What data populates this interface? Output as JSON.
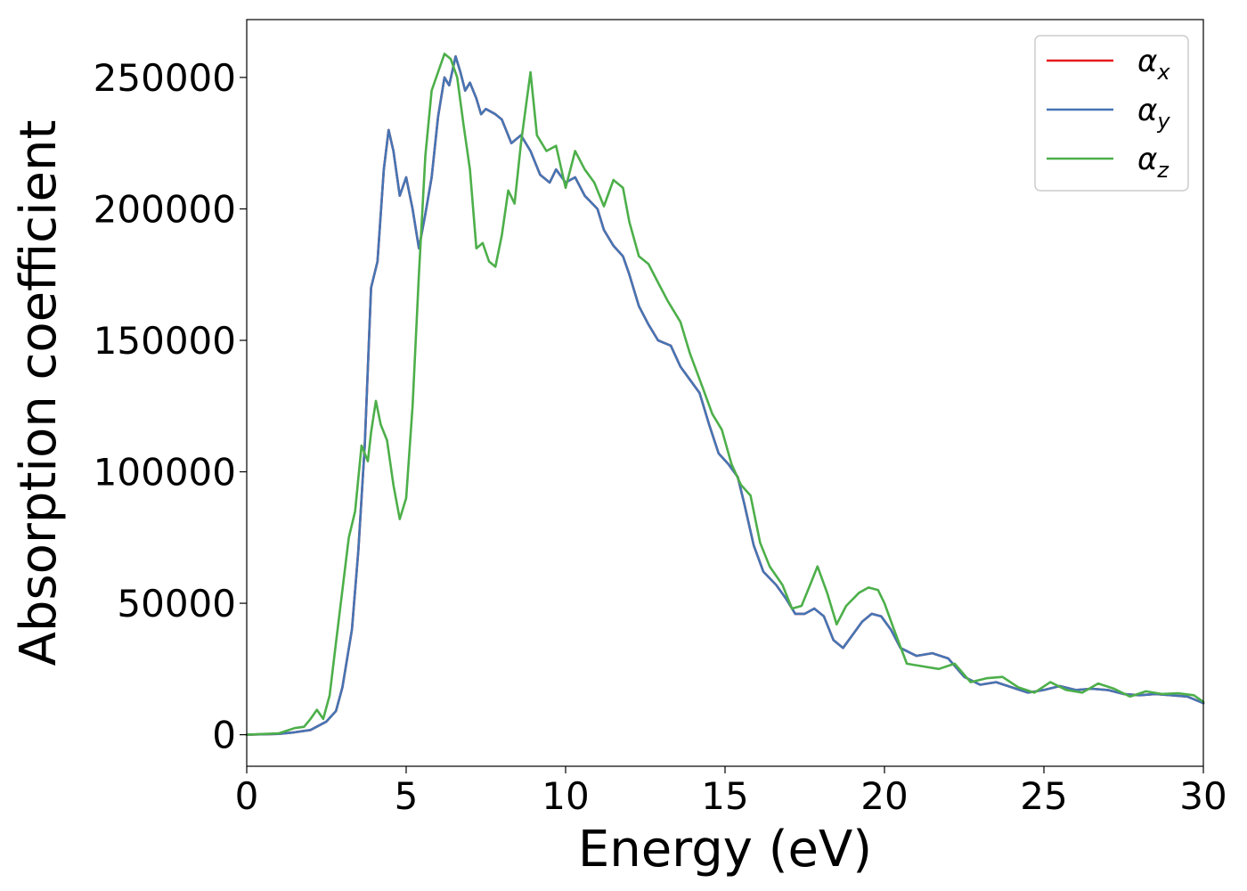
{
  "chart_data": {
    "type": "line",
    "xlabel": "Energy (eV)",
    "ylabel": "Absorption coefficient",
    "xlim": [
      0,
      30
    ],
    "ylim": [
      -12000,
      272000
    ],
    "xticks": [
      0,
      5,
      10,
      15,
      20,
      25,
      30
    ],
    "yticks": [
      0,
      50000,
      100000,
      150000,
      200000,
      250000
    ],
    "grid": false,
    "legend_position": "top-right",
    "series": [
      {
        "name": "αx",
        "legend_main": "α",
        "legend_sub": "x",
        "color": "#e41a1c",
        "points": [
          [
            0,
            0
          ],
          [
            1,
            300
          ],
          [
            1.5,
            900
          ],
          [
            2,
            1800
          ],
          [
            2.5,
            5000
          ],
          [
            2.8,
            9000
          ],
          [
            3,
            18000
          ],
          [
            3.3,
            40000
          ],
          [
            3.5,
            70000
          ],
          [
            3.7,
            110000
          ],
          [
            3.9,
            170000
          ],
          [
            4.1,
            180000
          ],
          [
            4.3,
            215000
          ],
          [
            4.45,
            230000
          ],
          [
            4.6,
            222000
          ],
          [
            4.8,
            205000
          ],
          [
            5.0,
            212000
          ],
          [
            5.2,
            200000
          ],
          [
            5.4,
            185000
          ],
          [
            5.6,
            198000
          ],
          [
            5.8,
            212000
          ],
          [
            6.0,
            235000
          ],
          [
            6.2,
            250000
          ],
          [
            6.35,
            247000
          ],
          [
            6.55,
            258000
          ],
          [
            6.7,
            252000
          ],
          [
            6.85,
            245000
          ],
          [
            7.0,
            248000
          ],
          [
            7.2,
            242000
          ],
          [
            7.35,
            236000
          ],
          [
            7.5,
            238000
          ],
          [
            7.8,
            236000
          ],
          [
            8.0,
            234000
          ],
          [
            8.3,
            225000
          ],
          [
            8.6,
            228000
          ],
          [
            8.9,
            222000
          ],
          [
            9.2,
            213000
          ],
          [
            9.5,
            210000
          ],
          [
            9.7,
            215000
          ],
          [
            10.0,
            210000
          ],
          [
            10.3,
            212000
          ],
          [
            10.6,
            205000
          ],
          [
            11.0,
            200000
          ],
          [
            11.2,
            192000
          ],
          [
            11.5,
            186000
          ],
          [
            11.8,
            182000
          ],
          [
            12.0,
            175000
          ],
          [
            12.3,
            163000
          ],
          [
            12.6,
            156000
          ],
          [
            12.9,
            150000
          ],
          [
            13.3,
            148000
          ],
          [
            13.6,
            140000
          ],
          [
            13.9,
            135000
          ],
          [
            14.2,
            130000
          ],
          [
            14.5,
            118000
          ],
          [
            14.8,
            107000
          ],
          [
            15.1,
            103000
          ],
          [
            15.4,
            98000
          ],
          [
            15.6,
            88000
          ],
          [
            15.9,
            72000
          ],
          [
            16.2,
            62000
          ],
          [
            16.6,
            57000
          ],
          [
            16.9,
            52000
          ],
          [
            17.2,
            46000
          ],
          [
            17.5,
            46000
          ],
          [
            17.8,
            48000
          ],
          [
            18.1,
            45000
          ],
          [
            18.4,
            36000
          ],
          [
            18.7,
            33000
          ],
          [
            19.0,
            38000
          ],
          [
            19.3,
            43000
          ],
          [
            19.6,
            46000
          ],
          [
            19.9,
            45000
          ],
          [
            20.2,
            40000
          ],
          [
            20.5,
            33000
          ],
          [
            21.0,
            30000
          ],
          [
            21.5,
            31000
          ],
          [
            22.0,
            29000
          ],
          [
            22.5,
            22000
          ],
          [
            23.0,
            19000
          ],
          [
            23.5,
            20000
          ],
          [
            24.0,
            18000
          ],
          [
            24.5,
            16000
          ],
          [
            25.0,
            17000
          ],
          [
            25.5,
            18500
          ],
          [
            26.0,
            17000
          ],
          [
            26.5,
            17500
          ],
          [
            27.0,
            17000
          ],
          [
            27.5,
            15500
          ],
          [
            28.0,
            15000
          ],
          [
            28.5,
            15500
          ],
          [
            29.0,
            15000
          ],
          [
            29.5,
            14500
          ],
          [
            30.0,
            12000
          ]
        ]
      },
      {
        "name": "αy",
        "legend_main": "α",
        "legend_sub": "y",
        "color": "#4575b4",
        "points": [
          [
            0,
            0
          ],
          [
            1,
            300
          ],
          [
            1.5,
            900
          ],
          [
            2,
            1800
          ],
          [
            2.5,
            5000
          ],
          [
            2.8,
            9000
          ],
          [
            3,
            18000
          ],
          [
            3.3,
            40000
          ],
          [
            3.5,
            70000
          ],
          [
            3.7,
            110000
          ],
          [
            3.9,
            170000
          ],
          [
            4.1,
            180000
          ],
          [
            4.3,
            215000
          ],
          [
            4.45,
            230000
          ],
          [
            4.6,
            222000
          ],
          [
            4.8,
            205000
          ],
          [
            5.0,
            212000
          ],
          [
            5.2,
            200000
          ],
          [
            5.4,
            185000
          ],
          [
            5.6,
            198000
          ],
          [
            5.8,
            212000
          ],
          [
            6.0,
            235000
          ],
          [
            6.2,
            250000
          ],
          [
            6.35,
            247000
          ],
          [
            6.55,
            258000
          ],
          [
            6.7,
            252000
          ],
          [
            6.85,
            245000
          ],
          [
            7.0,
            248000
          ],
          [
            7.2,
            242000
          ],
          [
            7.35,
            236000
          ],
          [
            7.5,
            238000
          ],
          [
            7.8,
            236000
          ],
          [
            8.0,
            234000
          ],
          [
            8.3,
            225000
          ],
          [
            8.6,
            228000
          ],
          [
            8.9,
            222000
          ],
          [
            9.2,
            213000
          ],
          [
            9.5,
            210000
          ],
          [
            9.7,
            215000
          ],
          [
            10.0,
            210000
          ],
          [
            10.3,
            212000
          ],
          [
            10.6,
            205000
          ],
          [
            11.0,
            200000
          ],
          [
            11.2,
            192000
          ],
          [
            11.5,
            186000
          ],
          [
            11.8,
            182000
          ],
          [
            12.0,
            175000
          ],
          [
            12.3,
            163000
          ],
          [
            12.6,
            156000
          ],
          [
            12.9,
            150000
          ],
          [
            13.3,
            148000
          ],
          [
            13.6,
            140000
          ],
          [
            13.9,
            135000
          ],
          [
            14.2,
            130000
          ],
          [
            14.5,
            118000
          ],
          [
            14.8,
            107000
          ],
          [
            15.1,
            103000
          ],
          [
            15.4,
            98000
          ],
          [
            15.6,
            88000
          ],
          [
            15.9,
            72000
          ],
          [
            16.2,
            62000
          ],
          [
            16.6,
            57000
          ],
          [
            16.9,
            52000
          ],
          [
            17.2,
            46000
          ],
          [
            17.5,
            46000
          ],
          [
            17.8,
            48000
          ],
          [
            18.1,
            45000
          ],
          [
            18.4,
            36000
          ],
          [
            18.7,
            33000
          ],
          [
            19.0,
            38000
          ],
          [
            19.3,
            43000
          ],
          [
            19.6,
            46000
          ],
          [
            19.9,
            45000
          ],
          [
            20.2,
            40000
          ],
          [
            20.5,
            33000
          ],
          [
            21.0,
            30000
          ],
          [
            21.5,
            31000
          ],
          [
            22.0,
            29000
          ],
          [
            22.5,
            22000
          ],
          [
            23.0,
            19000
          ],
          [
            23.5,
            20000
          ],
          [
            24.0,
            18000
          ],
          [
            24.5,
            16000
          ],
          [
            25.0,
            17000
          ],
          [
            25.5,
            18500
          ],
          [
            26.0,
            17000
          ],
          [
            26.5,
            17500
          ],
          [
            27.0,
            17000
          ],
          [
            27.5,
            15500
          ],
          [
            28.0,
            15000
          ],
          [
            28.5,
            15500
          ],
          [
            29.0,
            15000
          ],
          [
            29.5,
            14500
          ],
          [
            30.0,
            12000
          ]
        ]
      },
      {
        "name": "αz",
        "legend_main": "α",
        "legend_sub": "z",
        "color": "#4daf4a",
        "points": [
          [
            0,
            0
          ],
          [
            1,
            500
          ],
          [
            1.5,
            2500
          ],
          [
            1.8,
            3000
          ],
          [
            2.0,
            6000
          ],
          [
            2.2,
            9500
          ],
          [
            2.4,
            6000
          ],
          [
            2.6,
            15000
          ],
          [
            2.8,
            35000
          ],
          [
            3.0,
            55000
          ],
          [
            3.2,
            75000
          ],
          [
            3.4,
            85000
          ],
          [
            3.6,
            110000
          ],
          [
            3.8,
            104000
          ],
          [
            3.9,
            115000
          ],
          [
            4.05,
            127000
          ],
          [
            4.2,
            118000
          ],
          [
            4.4,
            112000
          ],
          [
            4.6,
            95000
          ],
          [
            4.8,
            82000
          ],
          [
            5.0,
            90000
          ],
          [
            5.2,
            125000
          ],
          [
            5.4,
            175000
          ],
          [
            5.6,
            220000
          ],
          [
            5.8,
            245000
          ],
          [
            6.0,
            252000
          ],
          [
            6.2,
            259000
          ],
          [
            6.4,
            257000
          ],
          [
            6.6,
            250000
          ],
          [
            6.8,
            232000
          ],
          [
            7.0,
            215000
          ],
          [
            7.2,
            185000
          ],
          [
            7.4,
            187000
          ],
          [
            7.6,
            180000
          ],
          [
            7.8,
            178000
          ],
          [
            8.0,
            190000
          ],
          [
            8.2,
            207000
          ],
          [
            8.4,
            202000
          ],
          [
            8.6,
            225000
          ],
          [
            8.9,
            252000
          ],
          [
            9.1,
            228000
          ],
          [
            9.4,
            222000
          ],
          [
            9.7,
            224000
          ],
          [
            10.0,
            208000
          ],
          [
            10.3,
            222000
          ],
          [
            10.6,
            215000
          ],
          [
            10.9,
            210000
          ],
          [
            11.2,
            201000
          ],
          [
            11.5,
            211000
          ],
          [
            11.8,
            208000
          ],
          [
            12.0,
            195000
          ],
          [
            12.3,
            182000
          ],
          [
            12.6,
            179000
          ],
          [
            12.9,
            172000
          ],
          [
            13.2,
            165000
          ],
          [
            13.6,
            157000
          ],
          [
            13.9,
            145000
          ],
          [
            14.3,
            132000
          ],
          [
            14.6,
            122000
          ],
          [
            14.9,
            116000
          ],
          [
            15.2,
            103000
          ],
          [
            15.5,
            95000
          ],
          [
            15.8,
            91000
          ],
          [
            16.1,
            73000
          ],
          [
            16.4,
            64000
          ],
          [
            16.8,
            57000
          ],
          [
            17.1,
            48000
          ],
          [
            17.4,
            49000
          ],
          [
            17.7,
            58000
          ],
          [
            17.9,
            64000
          ],
          [
            18.2,
            54000
          ],
          [
            18.5,
            42000
          ],
          [
            18.8,
            49000
          ],
          [
            19.2,
            54000
          ],
          [
            19.5,
            56000
          ],
          [
            19.8,
            55000
          ],
          [
            20.0,
            50000
          ],
          [
            20.3,
            40000
          ],
          [
            20.7,
            27000
          ],
          [
            21.2,
            26000
          ],
          [
            21.7,
            25000
          ],
          [
            22.2,
            27000
          ],
          [
            22.7,
            20000
          ],
          [
            23.2,
            21500
          ],
          [
            23.7,
            22000
          ],
          [
            24.2,
            18000
          ],
          [
            24.7,
            16000
          ],
          [
            25.2,
            20000
          ],
          [
            25.7,
            17000
          ],
          [
            26.2,
            16000
          ],
          [
            26.7,
            19500
          ],
          [
            27.2,
            17500
          ],
          [
            27.7,
            14500
          ],
          [
            28.2,
            16500
          ],
          [
            28.7,
            15500
          ],
          [
            29.2,
            15800
          ],
          [
            29.7,
            15000
          ],
          [
            30.0,
            12500
          ]
        ]
      }
    ]
  }
}
